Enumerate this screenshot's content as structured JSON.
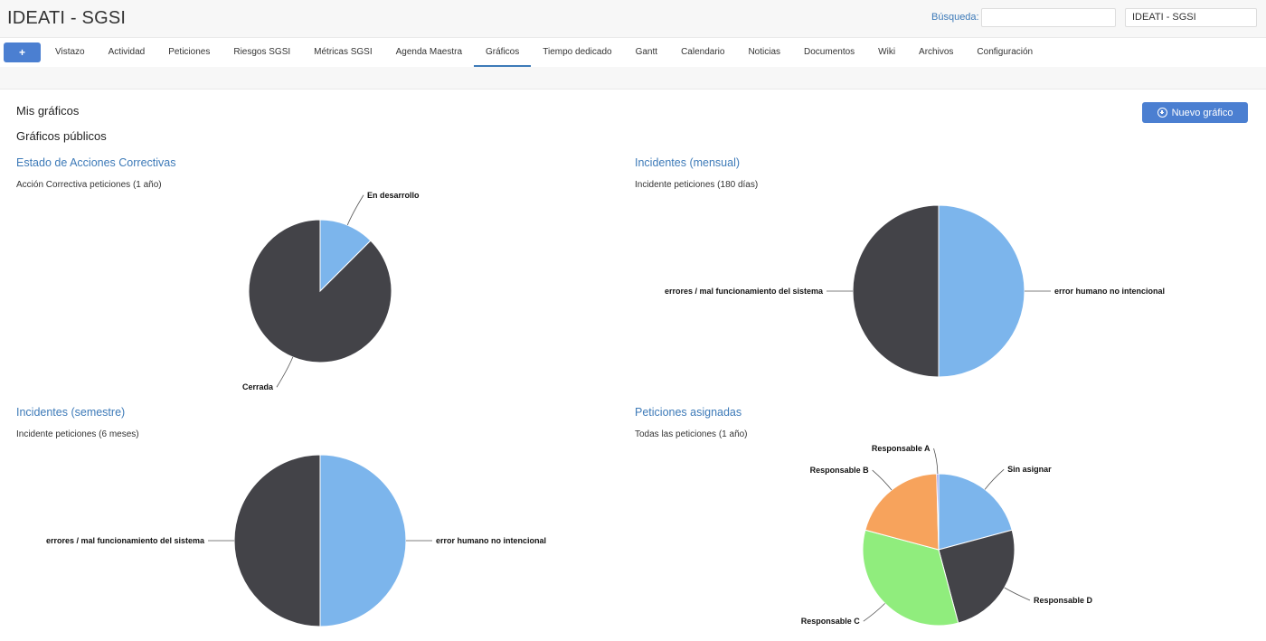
{
  "header": {
    "app_title": "IDEATI - SGSI",
    "search_label": "Búsqueda:",
    "search_value": "",
    "project_select": "IDEATI - SGSI"
  },
  "nav": {
    "plus_label": "+",
    "tabs": [
      {
        "label": "Vistazo"
      },
      {
        "label": "Actividad"
      },
      {
        "label": "Peticiones"
      },
      {
        "label": "Riesgos SGSI"
      },
      {
        "label": "Métricas SGSI"
      },
      {
        "label": "Agenda Maestra"
      },
      {
        "label": "Gráficos",
        "active": true
      },
      {
        "label": "Tiempo dedicado"
      },
      {
        "label": "Gantt"
      },
      {
        "label": "Calendario"
      },
      {
        "label": "Noticias"
      },
      {
        "label": "Documentos"
      },
      {
        "label": "Wiki"
      },
      {
        "label": "Archivos"
      },
      {
        "label": "Configuración"
      }
    ]
  },
  "content": {
    "my_charts": "Mis gráficos",
    "public_charts": "Gráficos públicos",
    "new_chart_button": "Nuevo gráfico"
  },
  "colors": {
    "accent": "#4b7fd1",
    "link": "#3d7ab8",
    "blue_slice": "#7cb5ec",
    "dark_slice": "#434348",
    "green_slice": "#90ed7d",
    "orange_slice": "#f7a35c",
    "purple_slice": "#8085e9"
  },
  "chart_data": [
    {
      "type": "pie",
      "title": "Estado de Acciones Correctivas",
      "subtitle": "Acción Correctiva peticiones (1 año)",
      "slices": [
        {
          "label": "En desarrollo",
          "value": 12.5,
          "color": "#7cb5ec"
        },
        {
          "label": "Cerrada",
          "value": 87.5,
          "color": "#434348"
        }
      ]
    },
    {
      "type": "pie",
      "title": "Incidentes (mensual)",
      "subtitle": "Incidente peticiones (180 días)",
      "slices": [
        {
          "label": "error humano no intencional",
          "value": 50,
          "color": "#7cb5ec"
        },
        {
          "label": "errores / mal funcionamiento del sistema",
          "value": 50,
          "color": "#434348"
        }
      ]
    },
    {
      "type": "pie",
      "title": "Incidentes (semestre)",
      "subtitle": "Incidente peticiones (6 meses)",
      "slices": [
        {
          "label": "error humano no intencional",
          "value": 50,
          "color": "#7cb5ec"
        },
        {
          "label": "errores / mal funcionamiento del sistema",
          "value": 50,
          "color": "#434348"
        }
      ]
    },
    {
      "type": "pie",
      "title": "Peticiones asignadas",
      "subtitle": "Todas las peticiones (1 año)",
      "slices": [
        {
          "label": "Sin asignar",
          "value": 20,
          "color": "#7cb5ec"
        },
        {
          "label": "Responsable D",
          "value": 24,
          "color": "#434348"
        },
        {
          "label": "Responsable C",
          "value": 32,
          "color": "#90ed7d"
        },
        {
          "label": "Responsable B",
          "value": 19.6,
          "color": "#f7a35c"
        },
        {
          "label": "Responsable A",
          "value": 0.4,
          "color": "#8085e9"
        }
      ]
    }
  ]
}
